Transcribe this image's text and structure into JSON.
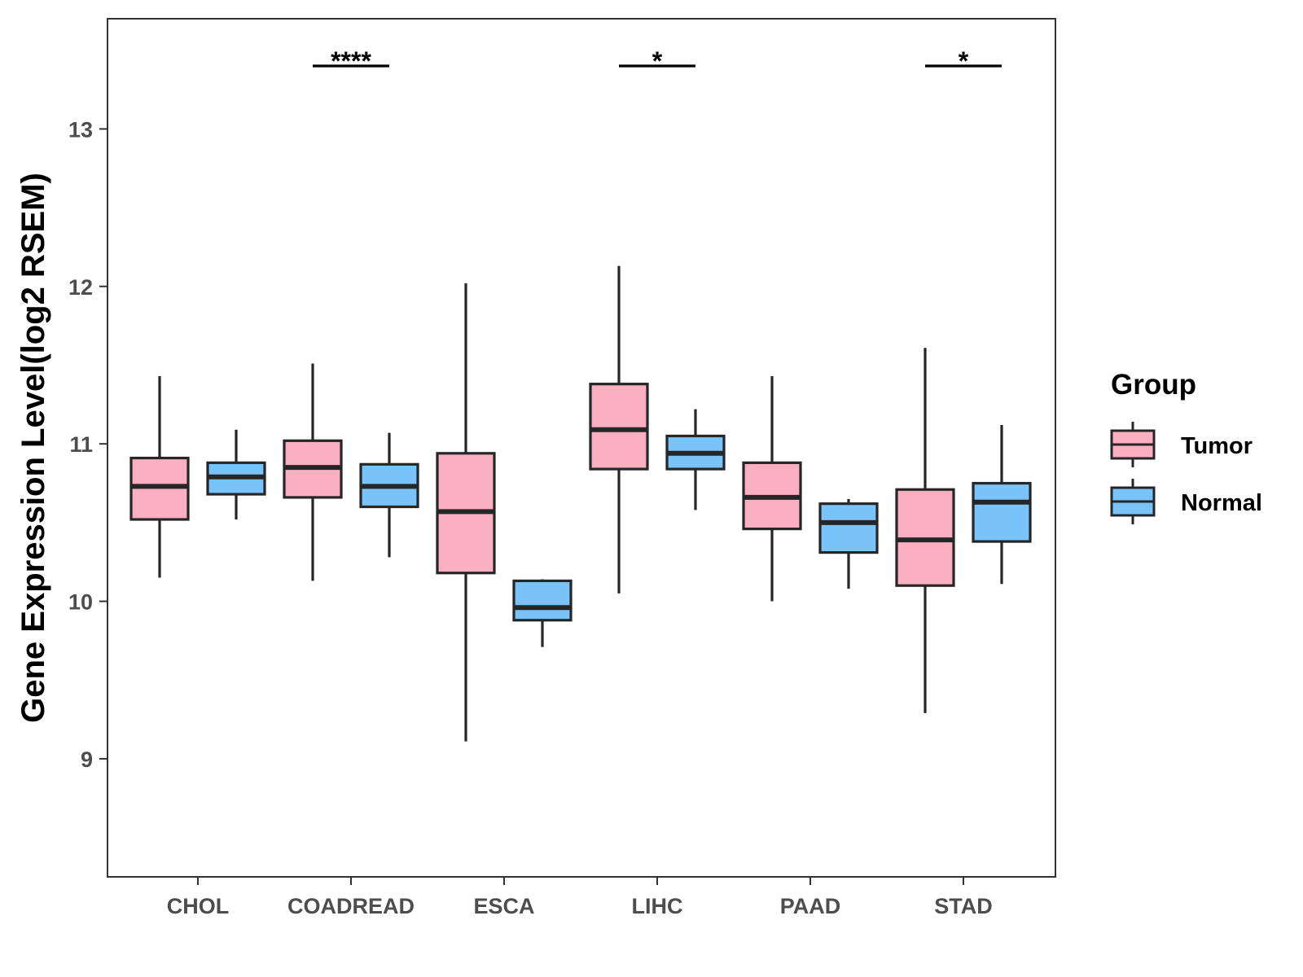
{
  "chart_data": {
    "type": "boxplot",
    "title": "",
    "xlabel": "",
    "ylabel": "Gene Expression Level(log2 RSEM)",
    "ylim": [
      8.25,
      13.7
    ],
    "yticks": [
      9,
      10,
      11,
      12,
      13
    ],
    "grid": false,
    "legend": {
      "title": "Group",
      "position": "right",
      "entries": [
        {
          "name": "Tumor",
          "color": "#FBB0C1"
        },
        {
          "name": "Normal",
          "color": "#7AC3F9"
        }
      ]
    },
    "categories": [
      "CHOL",
      "COADREAD",
      "ESCA",
      "LIHC",
      "PAAD",
      "STAD"
    ],
    "series": [
      {
        "name": "Tumor",
        "color": "#FBB0C1",
        "boxes": [
          {
            "min": 10.15,
            "q1": 10.52,
            "median": 10.73,
            "q3": 10.91,
            "max": 11.43
          },
          {
            "min": 10.13,
            "q1": 10.66,
            "median": 10.85,
            "q3": 11.02,
            "max": 11.51
          },
          {
            "min": 9.11,
            "q1": 10.18,
            "median": 10.57,
            "q3": 10.94,
            "max": 12.02
          },
          {
            "min": 10.05,
            "q1": 10.84,
            "median": 11.09,
            "q3": 11.38,
            "max": 12.13
          },
          {
            "min": 10.0,
            "q1": 10.46,
            "median": 10.66,
            "q3": 10.88,
            "max": 11.43
          },
          {
            "min": 9.29,
            "q1": 10.1,
            "median": 10.39,
            "q3": 10.71,
            "max": 11.61
          }
        ]
      },
      {
        "name": "Normal",
        "color": "#7AC3F9",
        "boxes": [
          {
            "min": 10.52,
            "q1": 10.68,
            "median": 10.79,
            "q3": 10.88,
            "max": 11.09
          },
          {
            "min": 10.28,
            "q1": 10.6,
            "median": 10.73,
            "q3": 10.87,
            "max": 11.07
          },
          {
            "min": 9.71,
            "q1": 9.88,
            "median": 9.96,
            "q3": 10.13,
            "max": 10.14
          },
          {
            "min": 10.58,
            "q1": 10.84,
            "median": 10.94,
            "q3": 11.05,
            "max": 11.22
          },
          {
            "min": 10.08,
            "q1": 10.31,
            "median": 10.5,
            "q3": 10.62,
            "max": 10.65
          },
          {
            "min": 10.11,
            "q1": 10.38,
            "median": 10.63,
            "q3": 10.75,
            "max": 11.12
          }
        ]
      }
    ],
    "annotations": [
      {
        "category": "COADREAD",
        "label": "****",
        "y": 13.4
      },
      {
        "category": "LIHC",
        "label": "*",
        "y": 13.4
      },
      {
        "category": "STAD",
        "label": "*",
        "y": 13.4
      }
    ]
  }
}
